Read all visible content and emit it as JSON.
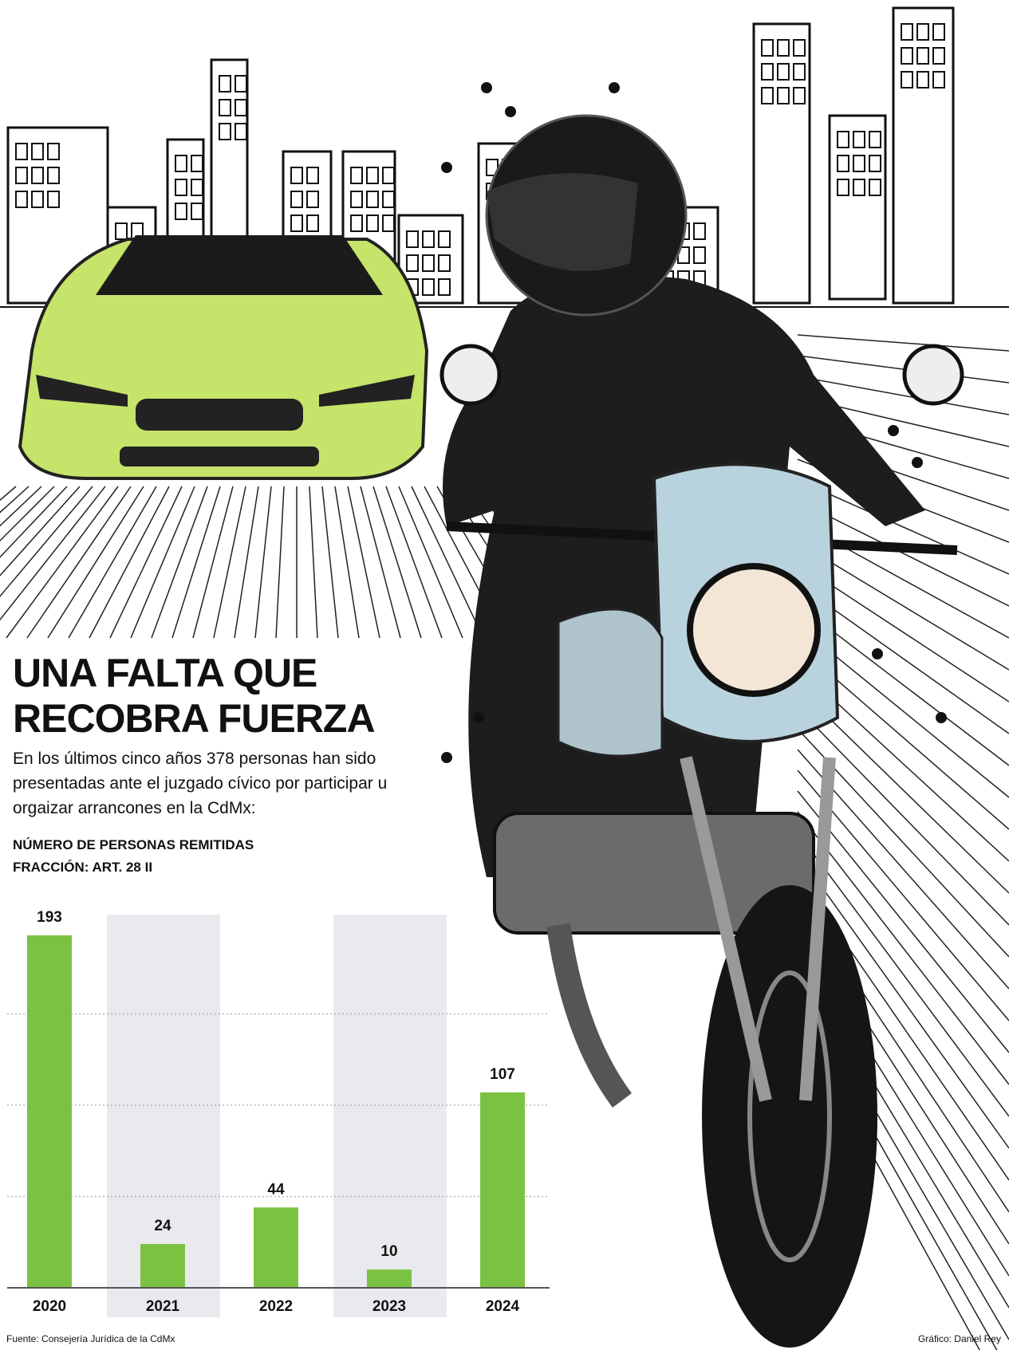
{
  "chart_data": {
    "type": "bar",
    "title": "UNA FALTA QUE RECOBRA FUERZA",
    "subtitle": "En los últimos cinco años 378 personas han sido presentadas ante el juzgado cívico por participar u orgaizar arrancones en la CdMx:",
    "chart_title": "NÚMERO DE PERSONAS REMITIDAS",
    "chart_subtitle": "FRACCIÓN: ART. 28 II",
    "categories": [
      "2020",
      "2021",
      "2022",
      "2023",
      "2024"
    ],
    "values": [
      193,
      24,
      44,
      10,
      107
    ],
    "color": "#7cc242",
    "ylim": [
      0,
      200
    ],
    "yticks": [
      50,
      100,
      150
    ],
    "grid": true,
    "source": "Fuente: Consejería Jurídica de la CdMx",
    "credit": "Gráfico: Daniel Rey"
  }
}
